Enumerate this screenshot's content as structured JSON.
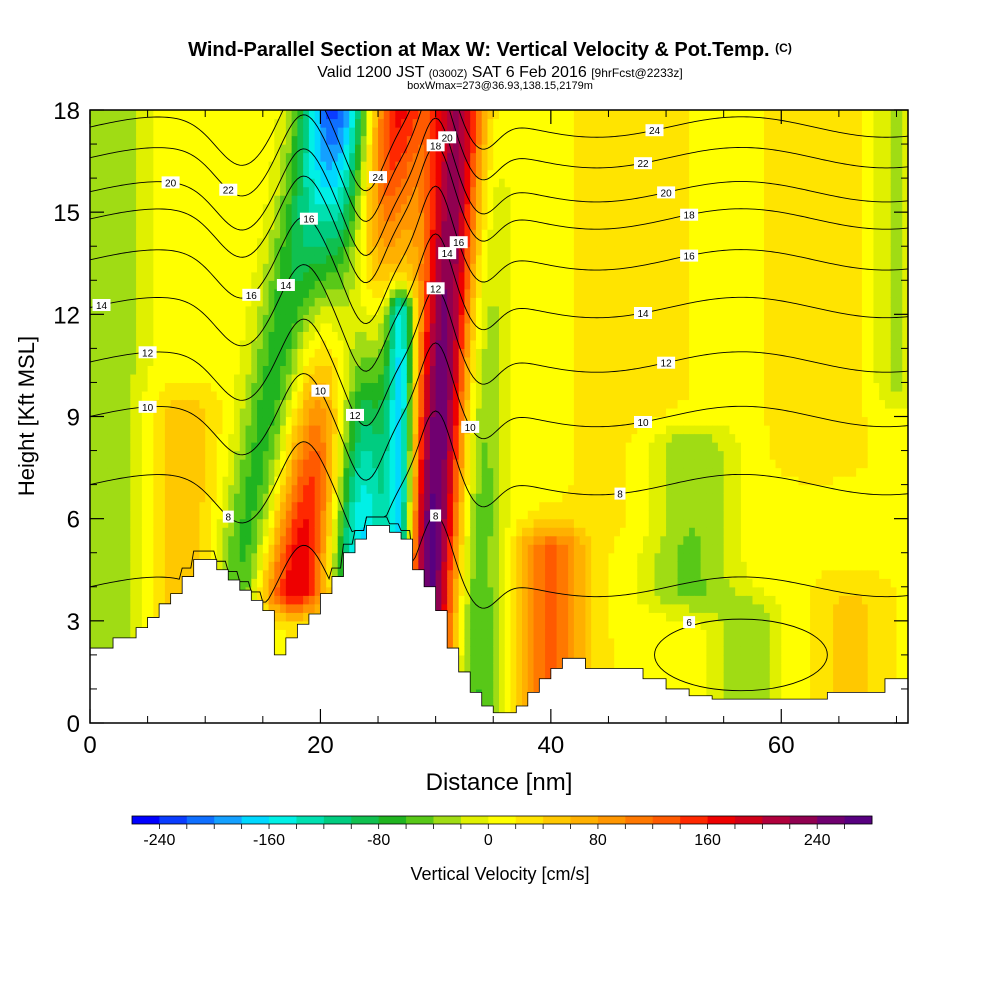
{
  "title": {
    "main": "Wind-Parallel Section at Max W: Vertical Velocity & Pot.Temp.",
    "main_suffix": "(C)",
    "line2_pre": "Valid 1200 JST",
    "line2_small1": "(0300Z)",
    "line2_mid": "SAT 6 Feb 2016",
    "line2_small2": "[9hrFcst@2233z]",
    "line3": "boxWmax=273@36.93,138.15,2179m"
  },
  "chart_data": {
    "type": "heatmap",
    "xlabel": "Distance [nm]",
    "ylabel": "Height [Kft MSL]",
    "xlim": [
      0,
      71
    ],
    "ylim": [
      0,
      18
    ],
    "x_ticks": [
      "0",
      "20",
      "40",
      "60"
    ],
    "y_ticks": [
      "0",
      "3",
      "6",
      "9",
      "12",
      "15",
      "18"
    ],
    "colorbar": {
      "label": "Vertical Velocity [cm/s]",
      "min": -260,
      "max": 280,
      "step": 20,
      "tick_labels": [
        "-240",
        "-160",
        "-80",
        "0",
        "80",
        "160",
        "240"
      ],
      "colors": [
        "#0000ff",
        "#0a3cff",
        "#0f6fff",
        "#14a0ff",
        "#00d8ff",
        "#00f0e6",
        "#00e0b0",
        "#00cc80",
        "#10c050",
        "#20b420",
        "#58c818",
        "#a0dc14",
        "#e0f000",
        "#ffff00",
        "#ffe400",
        "#ffc800",
        "#ffb000",
        "#ff9600",
        "#ff7800",
        "#ff5a00",
        "#ff2800",
        "#ee0000",
        "#d00018",
        "#b0003c",
        "#900050",
        "#700070",
        "#580080"
      ]
    },
    "velocity_features": [
      {
        "x": 18,
        "w": 3.2,
        "z0": 4,
        "z1": 18,
        "tilt": 0.6,
        "value": 170
      },
      {
        "x": 23.5,
        "w": 3.0,
        "z0": 4.5,
        "z1": 18,
        "tilt": -0.1,
        "value": -200
      },
      {
        "x": 29.5,
        "w": 2.4,
        "z0": 1.5,
        "z1": 18,
        "tilt": 0.2,
        "value": 260
      },
      {
        "x": 13,
        "w": 2.5,
        "z0": 2,
        "z1": 18,
        "tilt": 0.5,
        "value": -90
      },
      {
        "x": 33.5,
        "w": 2.5,
        "z0": 0.5,
        "z1": 18,
        "tilt": 0.0,
        "value": -80
      },
      {
        "x": 27,
        "w": 1.2,
        "z0": 4,
        "z1": 12,
        "tilt": 0.0,
        "value": -180
      },
      {
        "x": 2,
        "w": 3,
        "z0": 2,
        "z1": 18,
        "tilt": 0,
        "value": -50
      },
      {
        "x": 8,
        "w": 3,
        "z0": 2,
        "z1": 9,
        "tilt": 0,
        "value": 40
      },
      {
        "x": 40,
        "w": 3,
        "z0": 0.5,
        "z1": 5,
        "tilt": 0,
        "value": 110
      },
      {
        "x": 52,
        "w": 4,
        "z0": 4,
        "z1": 8,
        "tilt": 0,
        "value": -60
      },
      {
        "x": 57,
        "w": 3,
        "z0": 0.5,
        "z1": 3,
        "tilt": 0,
        "value": -50
      },
      {
        "x": 66,
        "w": 3,
        "z0": 0.5,
        "z1": 3.5,
        "tilt": 0,
        "value": 30
      },
      {
        "x": 63,
        "w": 4,
        "z0": 8,
        "z1": 18,
        "tilt": 0,
        "value": 20
      },
      {
        "x": 70,
        "w": 2,
        "z0": 10,
        "z1": 18,
        "tilt": 0,
        "value": -40
      },
      {
        "x": 47,
        "w": 5,
        "z0": 6,
        "z1": 18,
        "tilt": 0,
        "value": 15
      }
    ],
    "terrain": [
      [
        0,
        2.2
      ],
      [
        2,
        2.2
      ],
      [
        2,
        2.5
      ],
      [
        4,
        2.5
      ],
      [
        4,
        2.8
      ],
      [
        5,
        2.8
      ],
      [
        5,
        3.1
      ],
      [
        6,
        3.1
      ],
      [
        6,
        3.5
      ],
      [
        7,
        3.5
      ],
      [
        7,
        3.8
      ],
      [
        8,
        3.8
      ],
      [
        8,
        4.3
      ],
      [
        9,
        4.3
      ],
      [
        9,
        4.8
      ],
      [
        11,
        4.8
      ],
      [
        11,
        4.5
      ],
      [
        12,
        4.5
      ],
      [
        12,
        4.2
      ],
      [
        13,
        4.2
      ],
      [
        13,
        3.9
      ],
      [
        14,
        3.9
      ],
      [
        14,
        3.6
      ],
      [
        15,
        3.6
      ],
      [
        15,
        3.3
      ],
      [
        16,
        3.3
      ],
      [
        16,
        2.0
      ],
      [
        17,
        2.0
      ],
      [
        17,
        2.5
      ],
      [
        18,
        2.5
      ],
      [
        18,
        2.9
      ],
      [
        19,
        2.9
      ],
      [
        19,
        3.2
      ],
      [
        20,
        3.2
      ],
      [
        20,
        3.8
      ],
      [
        21,
        3.8
      ],
      [
        21,
        4.3
      ],
      [
        22,
        4.3
      ],
      [
        22,
        5.0
      ],
      [
        23,
        5.0
      ],
      [
        23,
        5.4
      ],
      [
        24,
        5.4
      ],
      [
        24,
        5.8
      ],
      [
        26,
        5.8
      ],
      [
        26,
        5.6
      ],
      [
        27,
        5.6
      ],
      [
        27,
        5.4
      ],
      [
        28,
        5.4
      ],
      [
        28,
        4.5
      ],
      [
        29,
        4.5
      ],
      [
        29,
        4.0
      ],
      [
        30,
        4.0
      ],
      [
        30,
        3.3
      ],
      [
        31,
        3.3
      ],
      [
        31,
        2.2
      ],
      [
        32,
        2.2
      ],
      [
        32,
        1.5
      ],
      [
        33,
        1.5
      ],
      [
        33,
        0.9
      ],
      [
        34,
        0.9
      ],
      [
        34,
        0.5
      ],
      [
        35,
        0.5
      ],
      [
        35,
        0.3
      ],
      [
        37,
        0.3
      ],
      [
        37,
        0.5
      ],
      [
        38,
        0.5
      ],
      [
        38,
        0.9
      ],
      [
        39,
        0.9
      ],
      [
        39,
        1.3
      ],
      [
        40,
        1.3
      ],
      [
        40,
        1.6
      ],
      [
        41,
        1.6
      ],
      [
        41,
        1.9
      ],
      [
        43,
        1.9
      ],
      [
        43,
        1.6
      ],
      [
        48,
        1.6
      ],
      [
        48,
        1.3
      ],
      [
        50,
        1.3
      ],
      [
        50,
        1.0
      ],
      [
        52,
        1.0
      ],
      [
        52,
        0.8
      ],
      [
        54,
        0.8
      ],
      [
        54,
        0.7
      ],
      [
        64,
        0.7
      ],
      [
        64,
        0.9
      ],
      [
        69,
        0.9
      ],
      [
        69,
        1.3
      ],
      [
        71,
        1.3
      ]
    ],
    "theta_contours": [
      {
        "base": 4.0,
        "label": "8",
        "labels_at": [
          30
        ]
      },
      {
        "base": 7.0,
        "label": "8",
        "labels_at": [
          12,
          46
        ]
      },
      {
        "base": 9.0,
        "label": "10",
        "labels_at": [
          5,
          20,
          33,
          48
        ]
      },
      {
        "base": 10.6,
        "label": "12",
        "labels_at": [
          5,
          23,
          30,
          50
        ]
      },
      {
        "base": 12.2,
        "label": "14",
        "labels_at": [
          1,
          17,
          31,
          48
        ]
      },
      {
        "base": 13.6,
        "label": "16",
        "labels_at": [
          14,
          19,
          32,
          52
        ]
      },
      {
        "base": 14.8,
        "label": "18",
        "labels_at": [
          30,
          52
        ]
      },
      {
        "base": 15.6,
        "label": "20",
        "labels_at": [
          7,
          31,
          50
        ]
      },
      {
        "base": 16.6,
        "label": "22",
        "labels_at": [
          12,
          30,
          48
        ]
      },
      {
        "base": 17.5,
        "label": "24",
        "labels_at": [
          25,
          49
        ]
      }
    ],
    "low_closed_contour": {
      "cx": 56.5,
      "cy": 2.0,
      "rx": 7.5,
      "ry": 1.05,
      "label": "6"
    }
  }
}
